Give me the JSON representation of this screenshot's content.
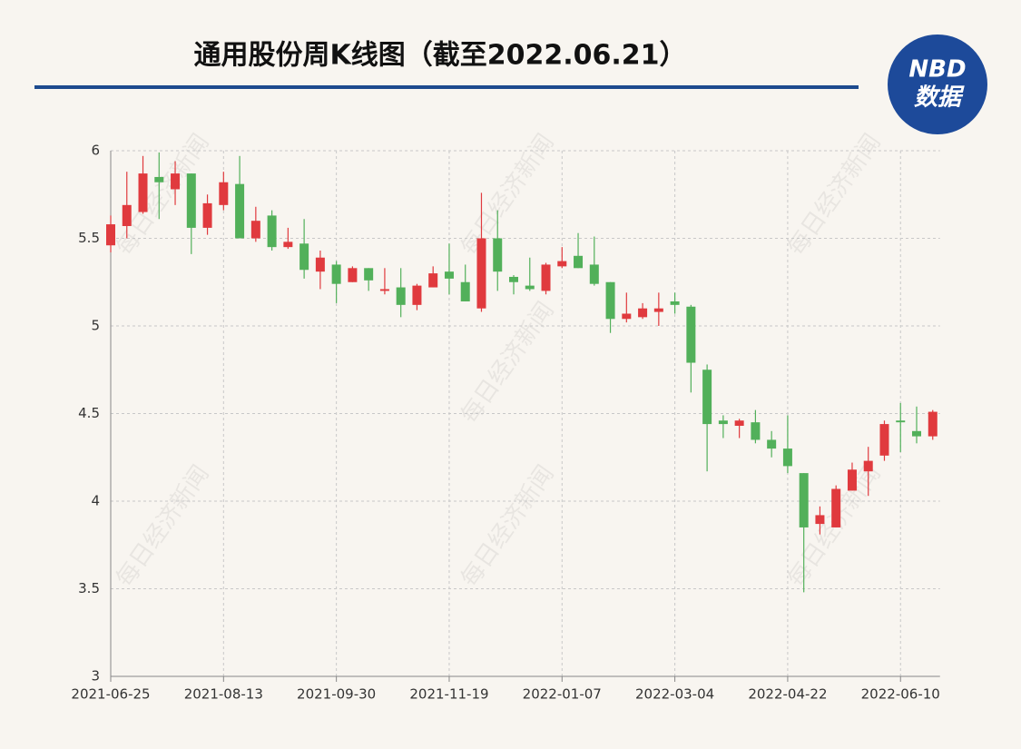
{
  "logo": {
    "top": "NBD",
    "bottom": "数据"
  },
  "watermark": "每日经济新闻",
  "chart_data": {
    "type": "candlestick",
    "title": "通用股份周K线图（截至2022.06.21）",
    "categories": [
      "2021-06-25",
      null,
      null,
      null,
      null,
      null,
      null,
      "2021-08-13",
      null,
      null,
      null,
      null,
      null,
      null,
      "2021-09-30",
      null,
      null,
      null,
      null,
      null,
      null,
      "2021-11-19",
      null,
      null,
      null,
      null,
      null,
      null,
      "2022-01-07",
      null,
      null,
      null,
      null,
      null,
      null,
      "2022-03-04",
      null,
      null,
      null,
      null,
      null,
      null,
      "2022-04-22",
      null,
      null,
      null,
      null,
      null,
      null,
      "2022-06-10",
      null,
      null
    ],
    "series": [
      {
        "up_color": "#e03a3e",
        "down_color": "#52b05a",
        "open": [
          5.46,
          5.57,
          5.65,
          5.85,
          5.78,
          5.87,
          5.56,
          5.69,
          5.81,
          5.5,
          5.63,
          5.45,
          5.47,
          5.31,
          5.35,
          5.25,
          5.33,
          5.2,
          5.22,
          5.12,
          5.22,
          5.31,
          5.25,
          5.1,
          5.5,
          5.28,
          5.23,
          5.2,
          5.34,
          5.4,
          5.35,
          5.25,
          5.04,
          5.05,
          5.08,
          5.14,
          5.11,
          4.75,
          4.46,
          4.43,
          4.45,
          4.35,
          4.3,
          4.16,
          3.87,
          3.85,
          4.06,
          4.17,
          4.26,
          4.46,
          4.4,
          4.37
        ],
        "high": [
          5.63,
          5.88,
          5.97,
          5.99,
          5.94,
          5.87,
          5.75,
          5.88,
          5.97,
          5.68,
          5.66,
          5.56,
          5.61,
          5.43,
          5.37,
          5.34,
          5.33,
          5.33,
          5.33,
          5.24,
          5.34,
          5.47,
          5.35,
          5.76,
          5.66,
          5.29,
          5.39,
          5.36,
          5.45,
          5.53,
          5.51,
          5.25,
          5.19,
          5.13,
          5.19,
          5.19,
          5.12,
          4.78,
          4.49,
          4.47,
          4.52,
          4.4,
          4.49,
          4.16,
          3.97,
          4.09,
          4.22,
          4.31,
          4.46,
          4.56,
          4.54,
          4.52
        ],
        "low": [
          5.42,
          5.5,
          5.64,
          5.61,
          5.69,
          5.41,
          5.52,
          5.66,
          5.5,
          5.48,
          5.43,
          5.44,
          5.27,
          5.21,
          5.13,
          5.25,
          5.2,
          5.18,
          5.05,
          5.09,
          5.22,
          5.18,
          5.14,
          5.08,
          5.2,
          5.18,
          5.2,
          5.18,
          5.33,
          5.33,
          5.23,
          4.96,
          5.02,
          5.04,
          5.0,
          5.07,
          4.62,
          4.17,
          4.36,
          4.36,
          4.33,
          4.25,
          4.16,
          3.48,
          3.81,
          3.85,
          4.06,
          4.03,
          4.23,
          4.28,
          4.33,
          4.35
        ],
        "close": [
          5.58,
          5.69,
          5.87,
          5.82,
          5.87,
          5.56,
          5.7,
          5.82,
          5.5,
          5.6,
          5.45,
          5.48,
          5.32,
          5.39,
          5.24,
          5.33,
          5.26,
          5.21,
          5.12,
          5.23,
          5.3,
          5.27,
          5.14,
          5.5,
          5.31,
          5.25,
          5.21,
          5.35,
          5.37,
          5.33,
          5.24,
          5.04,
          5.07,
          5.1,
          5.1,
          5.12,
          4.79,
          4.44,
          4.44,
          4.46,
          4.35,
          4.3,
          4.2,
          3.85,
          3.92,
          4.07,
          4.18,
          4.23,
          4.44,
          4.45,
          4.37,
          4.51
        ]
      }
    ],
    "ylim": [
      3,
      6
    ],
    "yticks": [
      3,
      3.5,
      4,
      4.5,
      5,
      5.5,
      6
    ],
    "grid": true
  }
}
